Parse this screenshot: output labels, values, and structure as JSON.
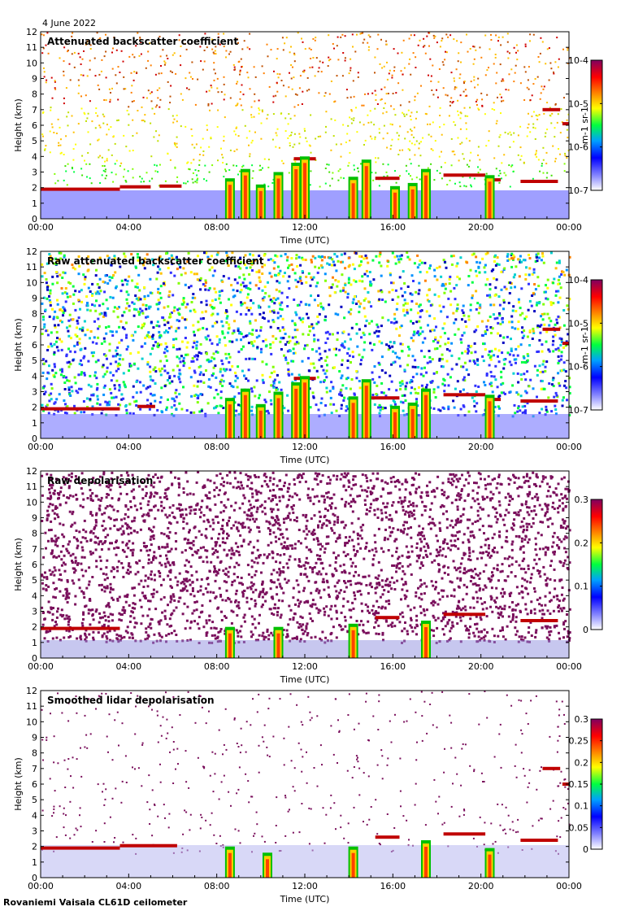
{
  "date": "4 June 2022",
  "footer": "Rovaniemi Vaisala CL61D ceilometer",
  "chart_data": [
    {
      "type": "heatmap",
      "title": "Attenuated backscatter coefficient",
      "xlabel": "Time (UTC)",
      "ylabel": "Height (km)",
      "x_ticks": [
        "00:00",
        "04:00",
        "08:00",
        "12:00",
        "16:00",
        "20:00",
        "00:00"
      ],
      "y_ticks": [
        "0",
        "1",
        "2",
        "3",
        "4",
        "5",
        "6",
        "7",
        "8",
        "9",
        "10",
        "11",
        "12"
      ],
      "ylim": [
        0,
        12
      ],
      "colorbar": {
        "scale": "log",
        "range": [
          1e-07,
          0.0001
        ],
        "ticks": [
          "10-7",
          "10-6",
          "10-5",
          "10-4"
        ],
        "unit": "m-1 sr-1"
      },
      "noise": "sparse",
      "cloud_layers": [
        {
          "t0": 0.0,
          "t1": 3.6,
          "h": 1.9
        },
        {
          "t0": 3.6,
          "t1": 5.0,
          "h": 2.05
        },
        {
          "t0": 5.4,
          "t1": 6.4,
          "h": 2.1
        },
        {
          "t0": 11.5,
          "t1": 12.5,
          "h": 3.85
        },
        {
          "t0": 15.2,
          "t1": 16.3,
          "h": 2.6
        },
        {
          "t0": 18.3,
          "t1": 20.2,
          "h": 2.8
        },
        {
          "t0": 20.2,
          "t1": 20.9,
          "h": 2.5
        },
        {
          "t0": 21.8,
          "t1": 23.5,
          "h": 2.4
        },
        {
          "t0": 22.8,
          "t1": 23.6,
          "h": 7.0
        },
        {
          "t0": 23.7,
          "t1": 24.0,
          "h": 6.1
        }
      ],
      "convective_cells": [
        {
          "t": 8.6,
          "top": 2.6
        },
        {
          "t": 9.3,
          "top": 3.2
        },
        {
          "t": 10.0,
          "top": 2.2
        },
        {
          "t": 10.8,
          "top": 3.0
        },
        {
          "t": 11.6,
          "top": 3.6
        },
        {
          "t": 12.0,
          "top": 4.0
        },
        {
          "t": 14.2,
          "top": 2.7
        },
        {
          "t": 14.8,
          "top": 3.8
        },
        {
          "t": 16.1,
          "top": 2.1
        },
        {
          "t": 16.9,
          "top": 2.3
        },
        {
          "t": 17.5,
          "top": 3.2
        },
        {
          "t": 20.4,
          "top": 2.8
        }
      ]
    },
    {
      "type": "heatmap",
      "title": "Raw attenuated backscatter coefficient",
      "xlabel": "Time (UTC)",
      "ylabel": "Height (km)",
      "x_ticks": [
        "00:00",
        "04:00",
        "08:00",
        "12:00",
        "16:00",
        "20:00",
        "00:00"
      ],
      "y_ticks": [
        "0",
        "1",
        "2",
        "3",
        "4",
        "5",
        "6",
        "7",
        "8",
        "9",
        "10",
        "11",
        "12"
      ],
      "ylim": [
        0,
        12
      ],
      "colorbar": {
        "scale": "log",
        "range": [
          1e-07,
          0.0001
        ],
        "ticks": [
          "10-7",
          "10-6",
          "10-5",
          "10-4"
        ],
        "unit": "m-1 sr-1"
      },
      "noise": "dense",
      "cloud_layers": [
        {
          "t0": 0.0,
          "t1": 3.6,
          "h": 1.9
        },
        {
          "t0": 4.4,
          "t1": 5.2,
          "h": 2.05
        },
        {
          "t0": 11.5,
          "t1": 12.5,
          "h": 3.85
        },
        {
          "t0": 14.8,
          "t1": 16.3,
          "h": 2.6
        },
        {
          "t0": 18.3,
          "t1": 20.2,
          "h": 2.8
        },
        {
          "t0": 20.2,
          "t1": 20.9,
          "h": 2.5
        },
        {
          "t0": 21.8,
          "t1": 23.5,
          "h": 2.4
        },
        {
          "t0": 22.8,
          "t1": 23.6,
          "h": 7.0
        },
        {
          "t0": 23.7,
          "t1": 24.0,
          "h": 6.1
        }
      ],
      "convective_cells": [
        {
          "t": 8.6,
          "top": 2.6
        },
        {
          "t": 9.3,
          "top": 3.2
        },
        {
          "t": 10.0,
          "top": 2.2
        },
        {
          "t": 10.8,
          "top": 3.0
        },
        {
          "t": 11.6,
          "top": 3.6
        },
        {
          "t": 12.0,
          "top": 4.0
        },
        {
          "t": 14.2,
          "top": 2.7
        },
        {
          "t": 14.8,
          "top": 3.8
        },
        {
          "t": 16.1,
          "top": 2.1
        },
        {
          "t": 16.9,
          "top": 2.3
        },
        {
          "t": 17.5,
          "top": 3.2
        },
        {
          "t": 20.4,
          "top": 2.8
        }
      ]
    },
    {
      "type": "heatmap",
      "title": "Raw depolarisation",
      "xlabel": "Time (UTC)",
      "ylabel": "Height (km)",
      "x_ticks": [
        "00:00",
        "04:00",
        "08:00",
        "12:00",
        "16:00",
        "20:00",
        "00:00"
      ],
      "y_ticks": [
        "0",
        "1",
        "2",
        "3",
        "4",
        "5",
        "6",
        "7",
        "8",
        "9",
        "10",
        "11",
        "12"
      ],
      "ylim": [
        0,
        12
      ],
      "colorbar": {
        "scale": "linear",
        "range": [
          0,
          0.3
        ],
        "ticks": [
          "0",
          "0.1",
          "0.2",
          "0.3"
        ],
        "unit": ""
      },
      "noise": "purple",
      "cloud_layers": [
        {
          "t0": 0.0,
          "t1": 3.6,
          "h": 1.9
        },
        {
          "t0": 15.2,
          "t1": 16.3,
          "h": 2.6
        },
        {
          "t0": 18.3,
          "t1": 20.2,
          "h": 2.8
        },
        {
          "t0": 21.8,
          "t1": 23.5,
          "h": 2.4
        }
      ],
      "convective_cells": [
        {
          "t": 8.6,
          "top": 2.0
        },
        {
          "t": 10.8,
          "top": 2.0
        },
        {
          "t": 14.2,
          "top": 2.2
        },
        {
          "t": 17.5,
          "top": 2.4
        }
      ]
    },
    {
      "type": "heatmap",
      "title": "Smoothed lidar depolarisation",
      "xlabel": "Time (UTC)",
      "ylabel": "Height (km)",
      "x_ticks": [
        "00:00",
        "04:00",
        "08:00",
        "12:00",
        "16:00",
        "20:00",
        "00:00"
      ],
      "y_ticks": [
        "0",
        "1",
        "2",
        "3",
        "4",
        "5",
        "6",
        "7",
        "8",
        "9",
        "10",
        "11",
        "12"
      ],
      "ylim": [
        0,
        12
      ],
      "colorbar": {
        "scale": "linear",
        "range": [
          0,
          0.3
        ],
        "ticks": [
          "0",
          "0.05",
          "0.1",
          "0.15",
          "0.2",
          "0.25",
          "0.3"
        ],
        "unit": ""
      },
      "noise": "sparse-purple",
      "cloud_layers": [
        {
          "t0": 0.0,
          "t1": 3.6,
          "h": 1.9
        },
        {
          "t0": 3.6,
          "t1": 6.2,
          "h": 2.05
        },
        {
          "t0": 15.2,
          "t1": 16.3,
          "h": 2.6
        },
        {
          "t0": 18.3,
          "t1": 20.2,
          "h": 2.8
        },
        {
          "t0": 21.8,
          "t1": 23.5,
          "h": 2.4
        },
        {
          "t0": 22.8,
          "t1": 23.6,
          "h": 7.0
        },
        {
          "t0": 23.7,
          "t1": 24.0,
          "h": 6.0
        }
      ],
      "convective_cells": [
        {
          "t": 8.6,
          "top": 2.0
        },
        {
          "t": 10.3,
          "top": 1.6
        },
        {
          "t": 14.2,
          "top": 2.0
        },
        {
          "t": 17.5,
          "top": 2.4
        },
        {
          "t": 20.4,
          "top": 1.9
        }
      ]
    }
  ]
}
